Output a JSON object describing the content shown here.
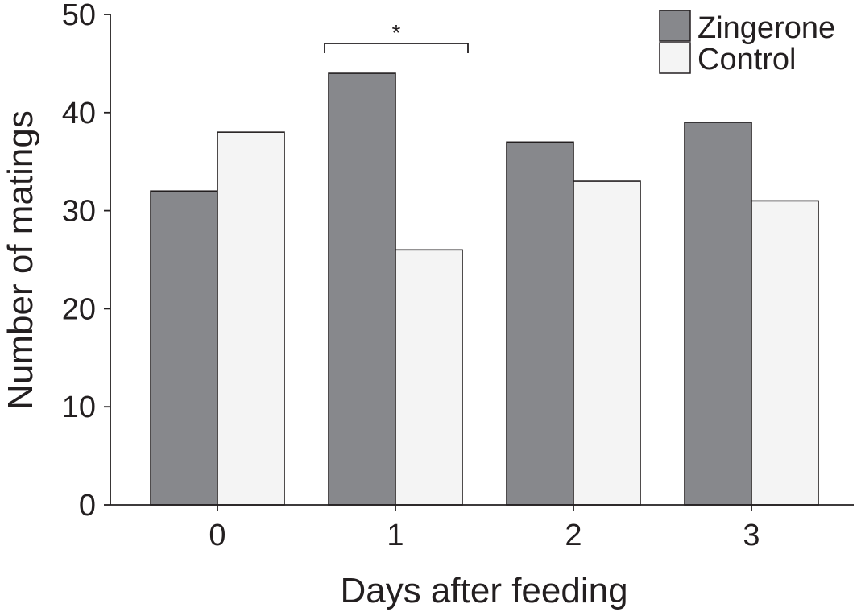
{
  "chart_data": {
    "type": "bar",
    "title": "",
    "xlabel": "Days after feeding",
    "ylabel": "Number of matings",
    "categories": [
      "0",
      "1",
      "2",
      "3"
    ],
    "series": [
      {
        "name": "Zingerone",
        "values": [
          32,
          44,
          37,
          39
        ],
        "color": "#87888c"
      },
      {
        "name": "Control",
        "values": [
          38,
          26,
          33,
          31
        ],
        "color": "#f4f4f4"
      }
    ],
    "ylim": [
      0,
      50
    ],
    "yticks": [
      "0",
      "10",
      "20",
      "30",
      "40",
      "50"
    ],
    "grid": false,
    "legend_position": "top-right",
    "annotations": [
      {
        "text": "*",
        "category": "1",
        "type": "significance-bracket"
      }
    ]
  }
}
